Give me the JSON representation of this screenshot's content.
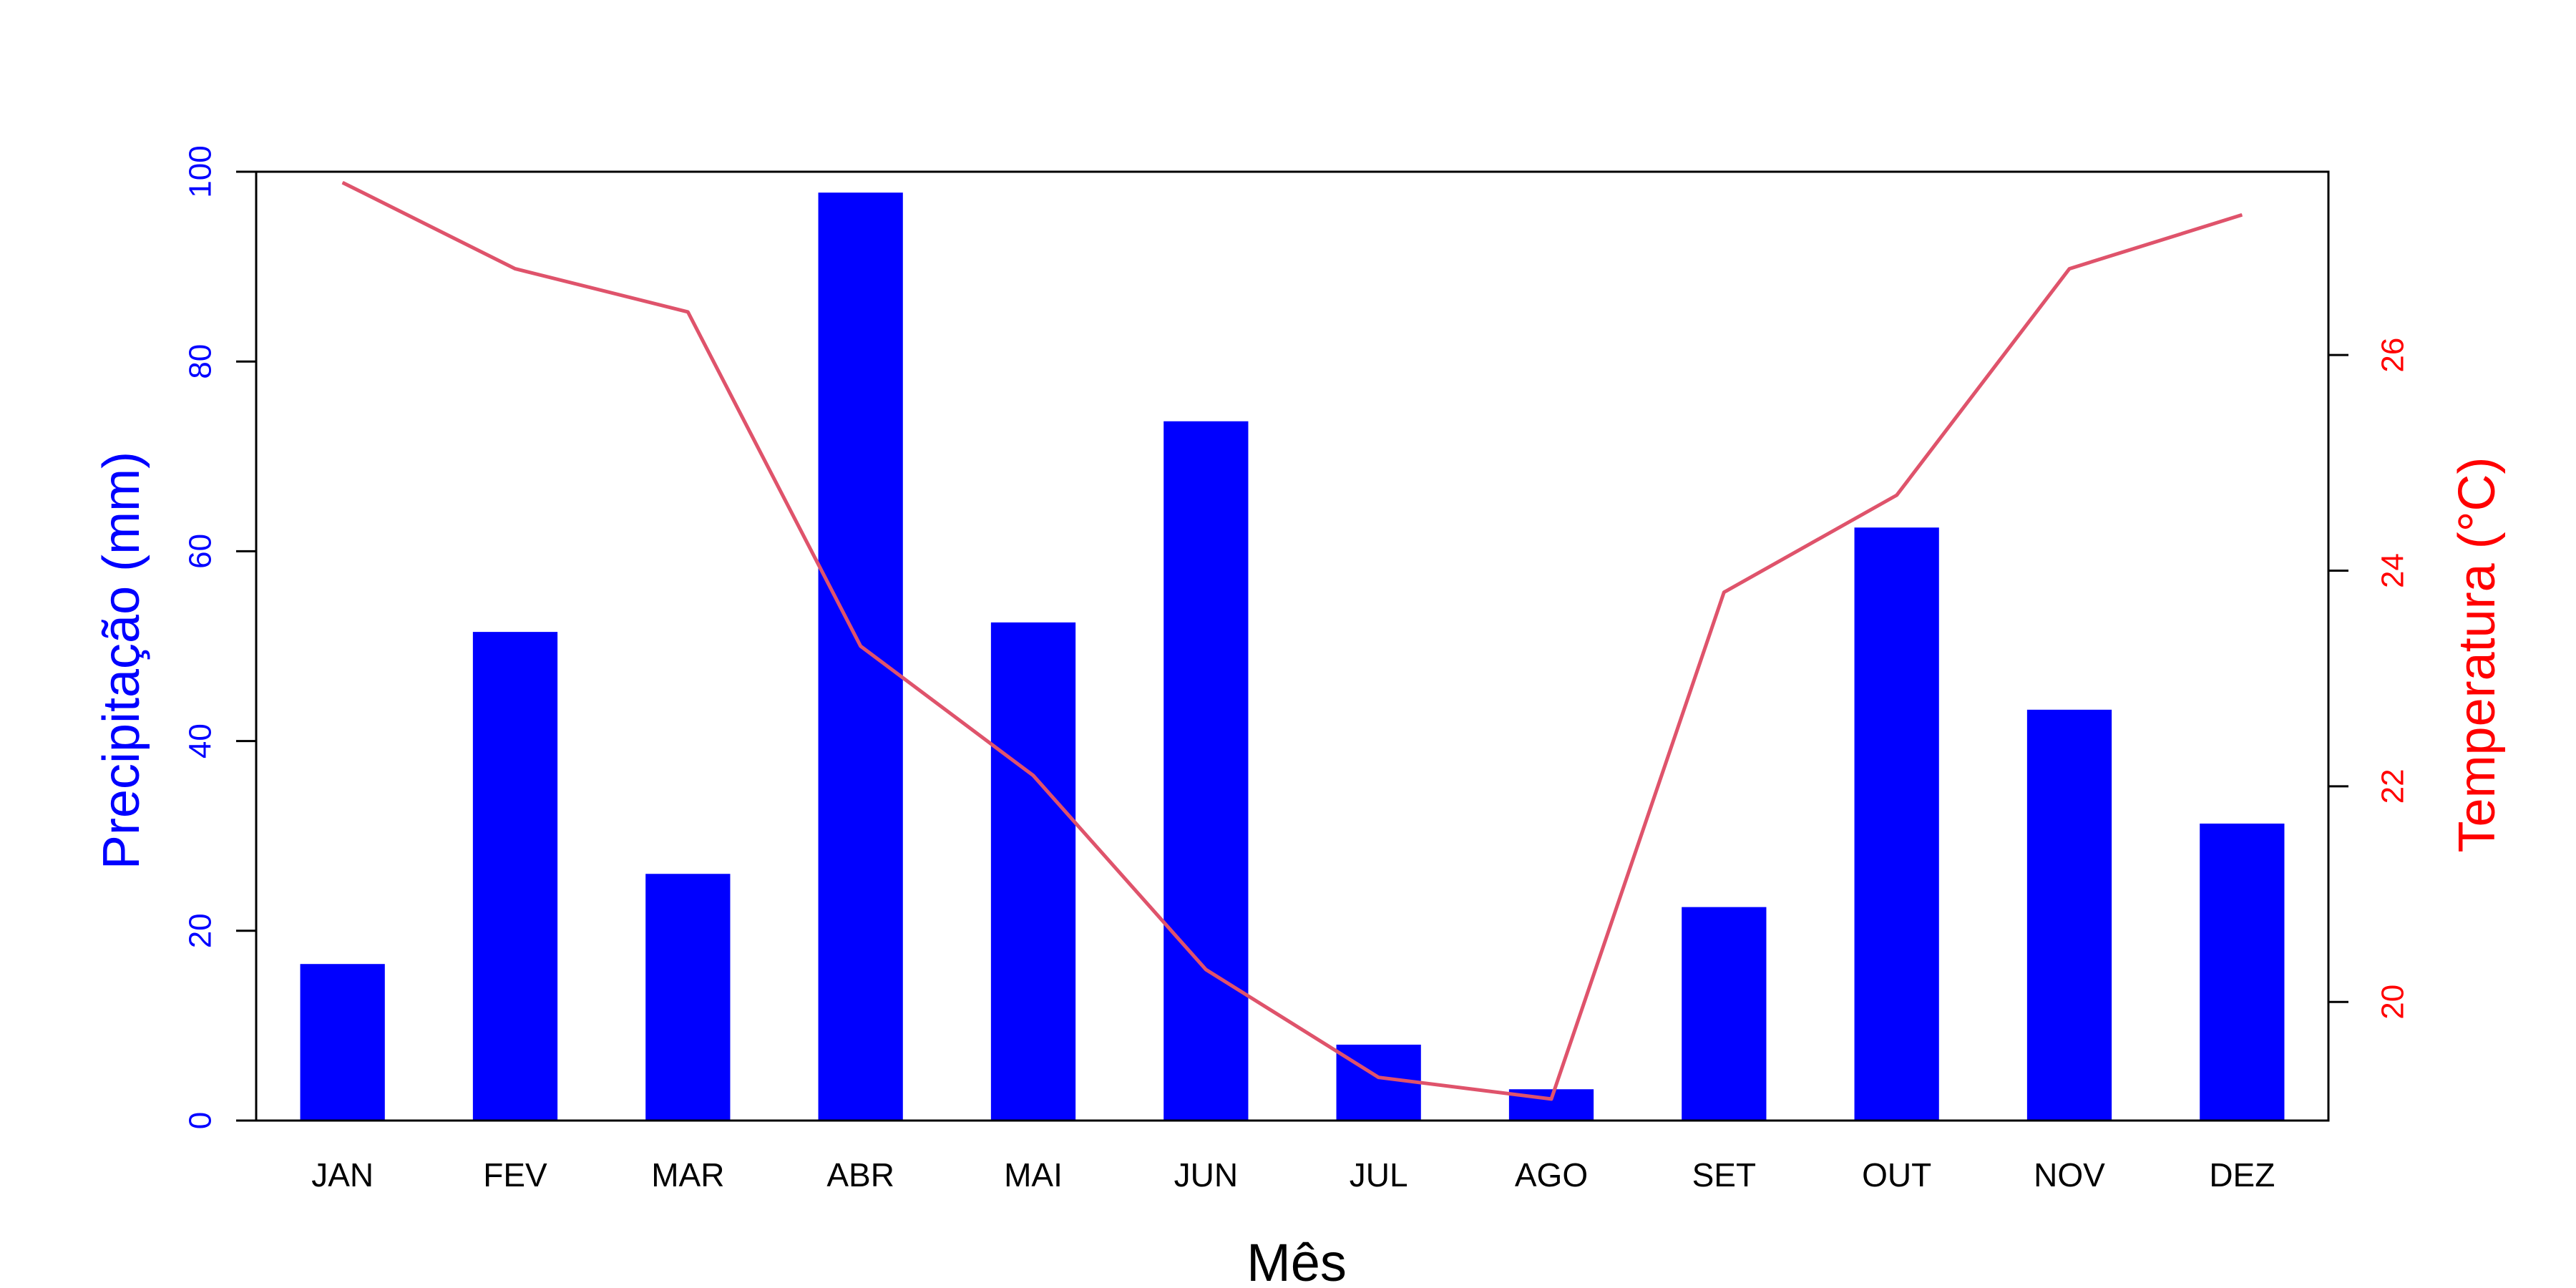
{
  "chart_data": {
    "type": "bar",
    "categories": [
      "JAN",
      "FEV",
      "MAR",
      "ABR",
      "MAI",
      "JUN",
      "JUL",
      "AGO",
      "SET",
      "OUT",
      "NOV",
      "DEZ"
    ],
    "series": [
      {
        "type": "bar",
        "axis": "left",
        "values": [
          16.5,
          51.5,
          26,
          97.8,
          52.5,
          73.7,
          8,
          3.3,
          22.5,
          62.5,
          43.3,
          31.3
        ],
        "color": "#0000FF"
      },
      {
        "type": "line",
        "axis": "right",
        "values": [
          27.6,
          26.8,
          26.4,
          23.3,
          22.1,
          20.3,
          19.3,
          19.1,
          23.8,
          24.7,
          26.8,
          27.3
        ],
        "color": "#DF536B"
      }
    ],
    "title": "",
    "xlabel": "Mês",
    "ylabel": "Precipitação (mm)",
    "y2label": "Temperatura (°C)",
    "ylim": [
      0,
      100
    ],
    "y2lim": [
      18.9,
      27.7
    ],
    "yticks": [
      "0",
      "20",
      "40",
      "60",
      "80",
      "100"
    ],
    "y2ticks": [
      "20",
      "22",
      "24",
      "26"
    ],
    "grid": false,
    "colors": {
      "left_axis": "#0000FF",
      "right_axis": "#FF0000",
      "frame": "#000000"
    }
  }
}
